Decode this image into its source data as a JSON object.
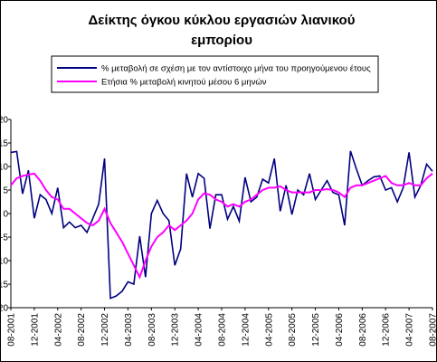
{
  "chart_data": {
    "type": "line",
    "title": "Δείκτης όγκου κύκλου εργασιών λιανικού εμπορίου",
    "categories": [
      "08-2001",
      null,
      null,
      null,
      "12-2001",
      null,
      null,
      null,
      "04-2002",
      null,
      null,
      null,
      "08-2002",
      null,
      null,
      null,
      "12-2002",
      null,
      null,
      null,
      "04-2003",
      null,
      null,
      null,
      "08-2003",
      null,
      null,
      null,
      "12-2003",
      null,
      null,
      null,
      "04-2004",
      null,
      null,
      null,
      "08-2004",
      null,
      null,
      null,
      "12-2004",
      null,
      null,
      null,
      "04-2005",
      null,
      null,
      null,
      "08-2005",
      null,
      null,
      null,
      "12-2005",
      null,
      null,
      null,
      "04-2006",
      null,
      null,
      null,
      "08-2006",
      null,
      null,
      null,
      "12-2006",
      null,
      null,
      null,
      "04-2007",
      null,
      null,
      null,
      "08-2007"
    ],
    "series": [
      {
        "name": "% μεταβολή σε σχέση με τον αντίστοιχο μήνα του προηγούμενου έτους",
        "color": "#000080",
        "values": [
          13,
          13.2,
          4.2,
          9.2,
          -1,
          4,
          3,
          0,
          5.5,
          -3,
          -1.8,
          -3,
          -2.5,
          -4,
          -1,
          2,
          11.7,
          -18,
          -17.5,
          -16.5,
          -14.5,
          -15,
          -4.8,
          -13.5,
          0,
          2.8,
          0,
          -1.5,
          -11,
          -7.5,
          8.5,
          3.5,
          8.5,
          7.5,
          -3.2,
          4,
          4,
          -1.2,
          1.5,
          -1.6,
          7.7,
          2.5,
          3.5,
          7.3,
          6.5,
          11.7,
          0.5,
          6,
          -0.2,
          5,
          4,
          8.5,
          3,
          5,
          7,
          4.5,
          4,
          -2.5,
          13.3,
          9.5,
          6,
          7,
          7.8,
          8,
          5,
          5.5,
          2.5,
          5.5,
          13,
          3.5,
          6,
          10.5,
          9
        ]
      },
      {
        "name": "Ετήσια %  μεταβολή κινητού μέσου 6 μηνών",
        "color": "#ff00ff",
        "values": [
          6,
          7.5,
          8,
          8.3,
          8.5,
          7,
          5,
          3.5,
          3,
          1,
          1,
          0,
          -1,
          -2,
          -2.5,
          -1.5,
          1,
          -2,
          -4,
          -6,
          -8.5,
          -11,
          -13.5,
          -10,
          -7,
          -5,
          -4,
          -2.5,
          -3.5,
          -2.5,
          -1.5,
          0,
          3,
          4.3,
          4,
          3,
          2.5,
          1.5,
          2,
          1.5,
          2.5,
          3,
          4,
          5,
          5.5,
          5.5,
          5.8,
          5,
          4.5,
          4.5,
          4.5,
          4.5,
          5,
          5,
          5.2,
          5,
          4.5,
          3.5,
          5.5,
          6,
          6,
          6.5,
          7,
          7.5,
          8,
          6.5,
          6,
          6,
          6.5,
          6,
          6,
          7.5,
          8.5
        ]
      }
    ],
    "ylim": [
      -20,
      20
    ],
    "yticks": [
      -20,
      -15,
      -10,
      -5,
      0,
      5,
      10,
      15,
      20
    ],
    "grid": false
  }
}
